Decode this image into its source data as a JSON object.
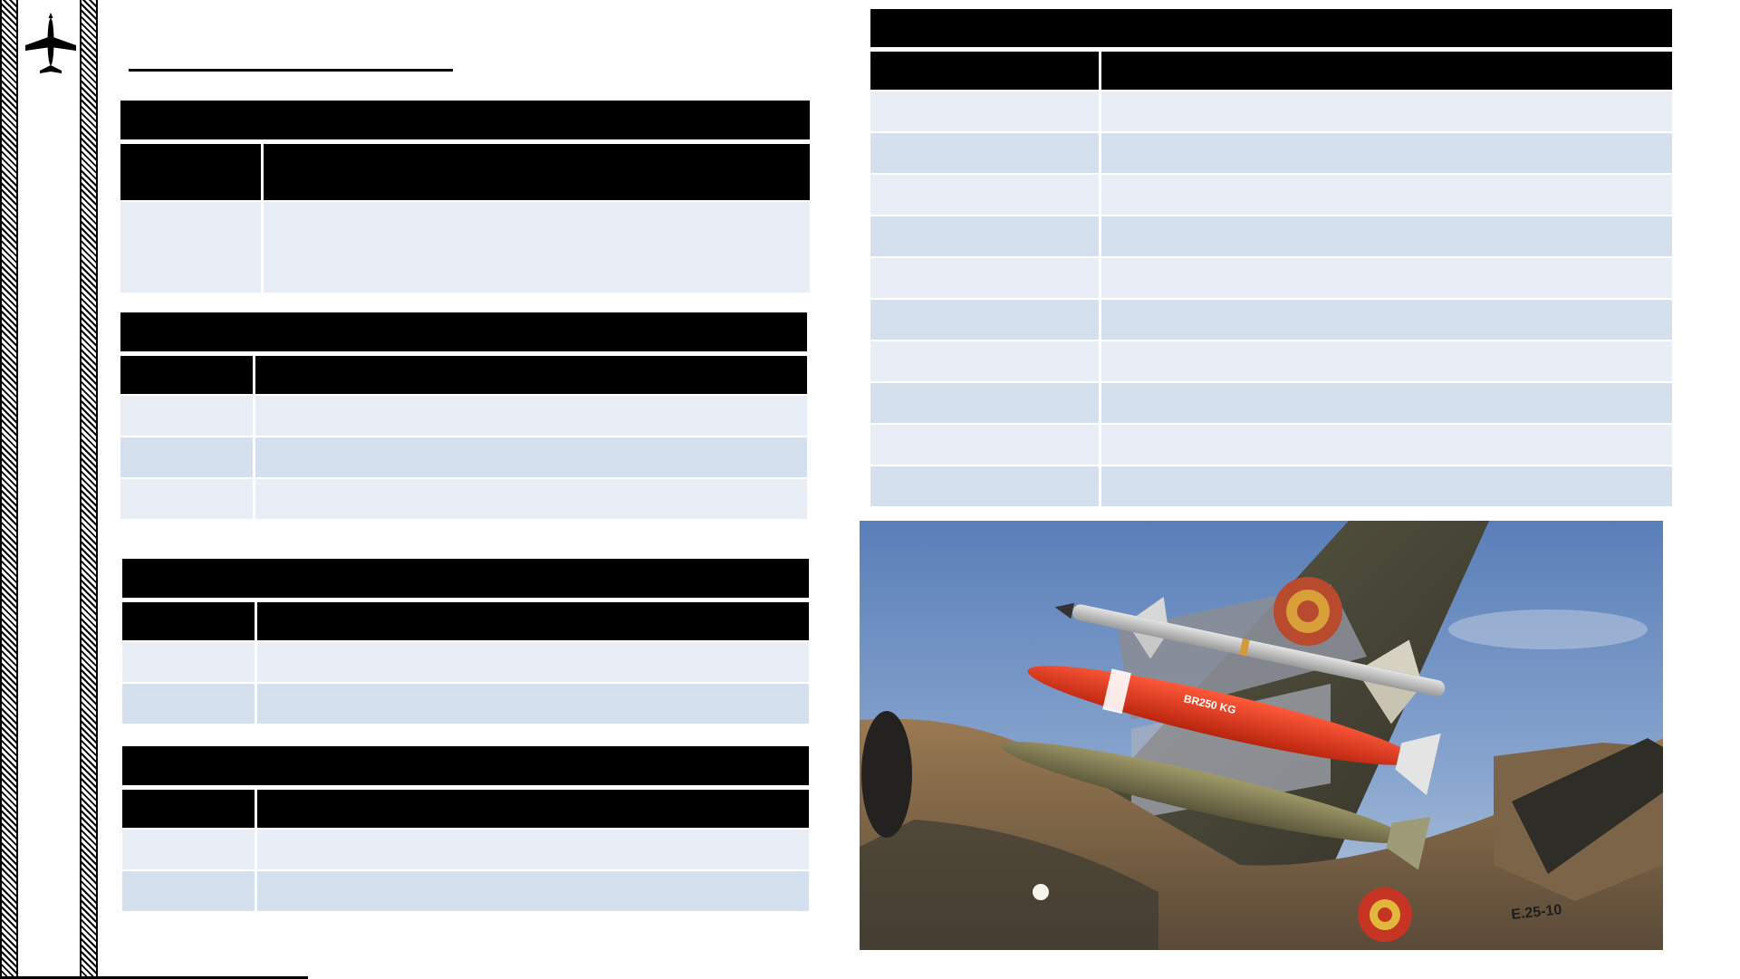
{
  "page": {
    "title": ""
  },
  "tables": {
    "t1": {
      "title": "",
      "headers": [
        "",
        ""
      ],
      "rows": [
        [
          "",
          ""
        ]
      ]
    },
    "t2": {
      "title": "",
      "headers": [
        "",
        ""
      ],
      "rows": [
        [
          "",
          ""
        ],
        [
          "",
          ""
        ],
        [
          "",
          ""
        ]
      ]
    },
    "t3": {
      "title": "",
      "headers": [
        "",
        ""
      ],
      "rows": [
        [
          "",
          ""
        ],
        [
          "",
          ""
        ]
      ]
    },
    "t4": {
      "title": "",
      "headers": [
        "",
        ""
      ],
      "rows": [
        [
          "",
          ""
        ],
        [
          "",
          ""
        ]
      ]
    },
    "t5": {
      "title": "",
      "headers": [
        "",
        ""
      ],
      "rows": [
        [
          "",
          ""
        ],
        [
          "",
          ""
        ],
        [
          "",
          ""
        ],
        [
          "",
          ""
        ],
        [
          "",
          ""
        ],
        [
          "",
          ""
        ],
        [
          "",
          ""
        ],
        [
          "",
          ""
        ],
        [
          "",
          ""
        ],
        [
          "",
          ""
        ]
      ]
    }
  },
  "photo": {
    "bomb_marking": "BR250 KG",
    "tail_code": "E.25-10"
  },
  "colors": {
    "header": "#000000",
    "row_light": "#e9edf6",
    "row_dark": "#d5e0ef"
  }
}
